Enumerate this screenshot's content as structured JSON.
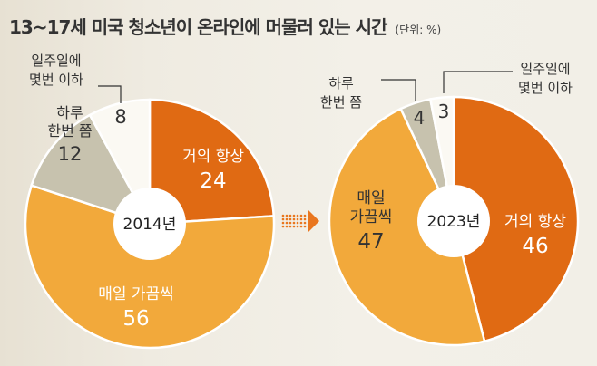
{
  "title": "13~17세 미국 청소년이 온라인에 머물러 있는 시간",
  "unit": "(단위: %)",
  "colors": {
    "almost_always": "#e06a13",
    "several_daily": "#f2a93b",
    "once_day": "#c7c2ae",
    "weekly_less": "#fbf9f3",
    "year_circle": "#ffffff",
    "arrow": "#e9761e",
    "text_dark": "#333333",
    "text_light": "#ffffff"
  },
  "chart_data": [
    {
      "type": "pie",
      "year_label": "2014년",
      "slices": [
        {
          "key": "almost_always",
          "label": [
            "거의 항상"
          ],
          "value": 24
        },
        {
          "key": "several_daily",
          "label": [
            "매일 가끔씩"
          ],
          "value": 56
        },
        {
          "key": "once_day",
          "label": [
            "하루",
            "한번 쯤"
          ],
          "value": 12
        },
        {
          "key": "weekly_less",
          "label": [
            "일주일에",
            "몇번 이하"
          ],
          "value": 8
        }
      ]
    },
    {
      "type": "pie",
      "year_label": "2023년",
      "slices": [
        {
          "key": "almost_always",
          "label": [
            "거의 항상"
          ],
          "value": 46
        },
        {
          "key": "several_daily",
          "label": [
            "매일",
            "가끔씩"
          ],
          "value": 47
        },
        {
          "key": "once_day",
          "label": [
            "하루",
            "한번 쯤"
          ],
          "value": 4
        },
        {
          "key": "weekly_less",
          "label": [
            "일주일에",
            "몇번 이하"
          ],
          "value": 3
        }
      ]
    }
  ]
}
